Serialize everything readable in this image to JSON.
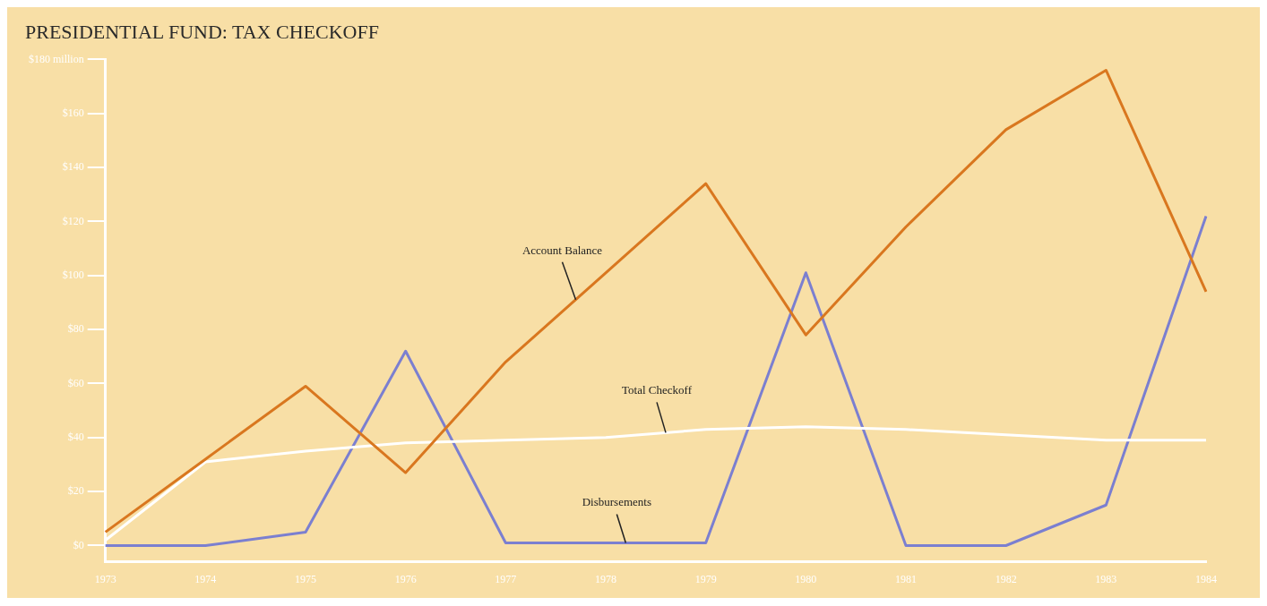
{
  "chart_data": {
    "type": "line",
    "title": "PRESIDENTIAL FUND: TAX CHECKOFF",
    "categories": [
      "1973",
      "1974",
      "1975",
      "1976",
      "1977",
      "1978",
      "1979",
      "1980",
      "1981",
      "1982",
      "1983",
      "1984"
    ],
    "series": [
      {
        "name": "Account Balance",
        "color": "#d9771f",
        "values": [
          5,
          32,
          59,
          27,
          68,
          101,
          134,
          78,
          118,
          154,
          176,
          94
        ]
      },
      {
        "name": "Total Checkoff",
        "color": "#ffffff",
        "values": [
          2,
          31,
          35,
          38,
          39,
          40,
          43,
          44,
          43,
          41,
          39,
          39
        ]
      },
      {
        "name": "Disbursements",
        "color": "#7b7fd0",
        "values": [
          0,
          0,
          5,
          72,
          1,
          1,
          1,
          101,
          0,
          0,
          15,
          122
        ]
      }
    ],
    "ylim": [
      -6,
      180
    ],
    "yticks": [
      {
        "value": 0,
        "label": "$0"
      },
      {
        "value": 20,
        "label": "$20"
      },
      {
        "value": 40,
        "label": "$40"
      },
      {
        "value": 60,
        "label": "$60"
      },
      {
        "value": 80,
        "label": "$80"
      },
      {
        "value": 100,
        "label": "$100"
      },
      {
        "value": 120,
        "label": "$120"
      },
      {
        "value": 140,
        "label": "$140"
      },
      {
        "value": 160,
        "label": "$160"
      },
      {
        "value": 180,
        "label": "$180 million"
      }
    ],
    "grid": false,
    "legend": false,
    "marker": "none",
    "line_style": "solid"
  }
}
